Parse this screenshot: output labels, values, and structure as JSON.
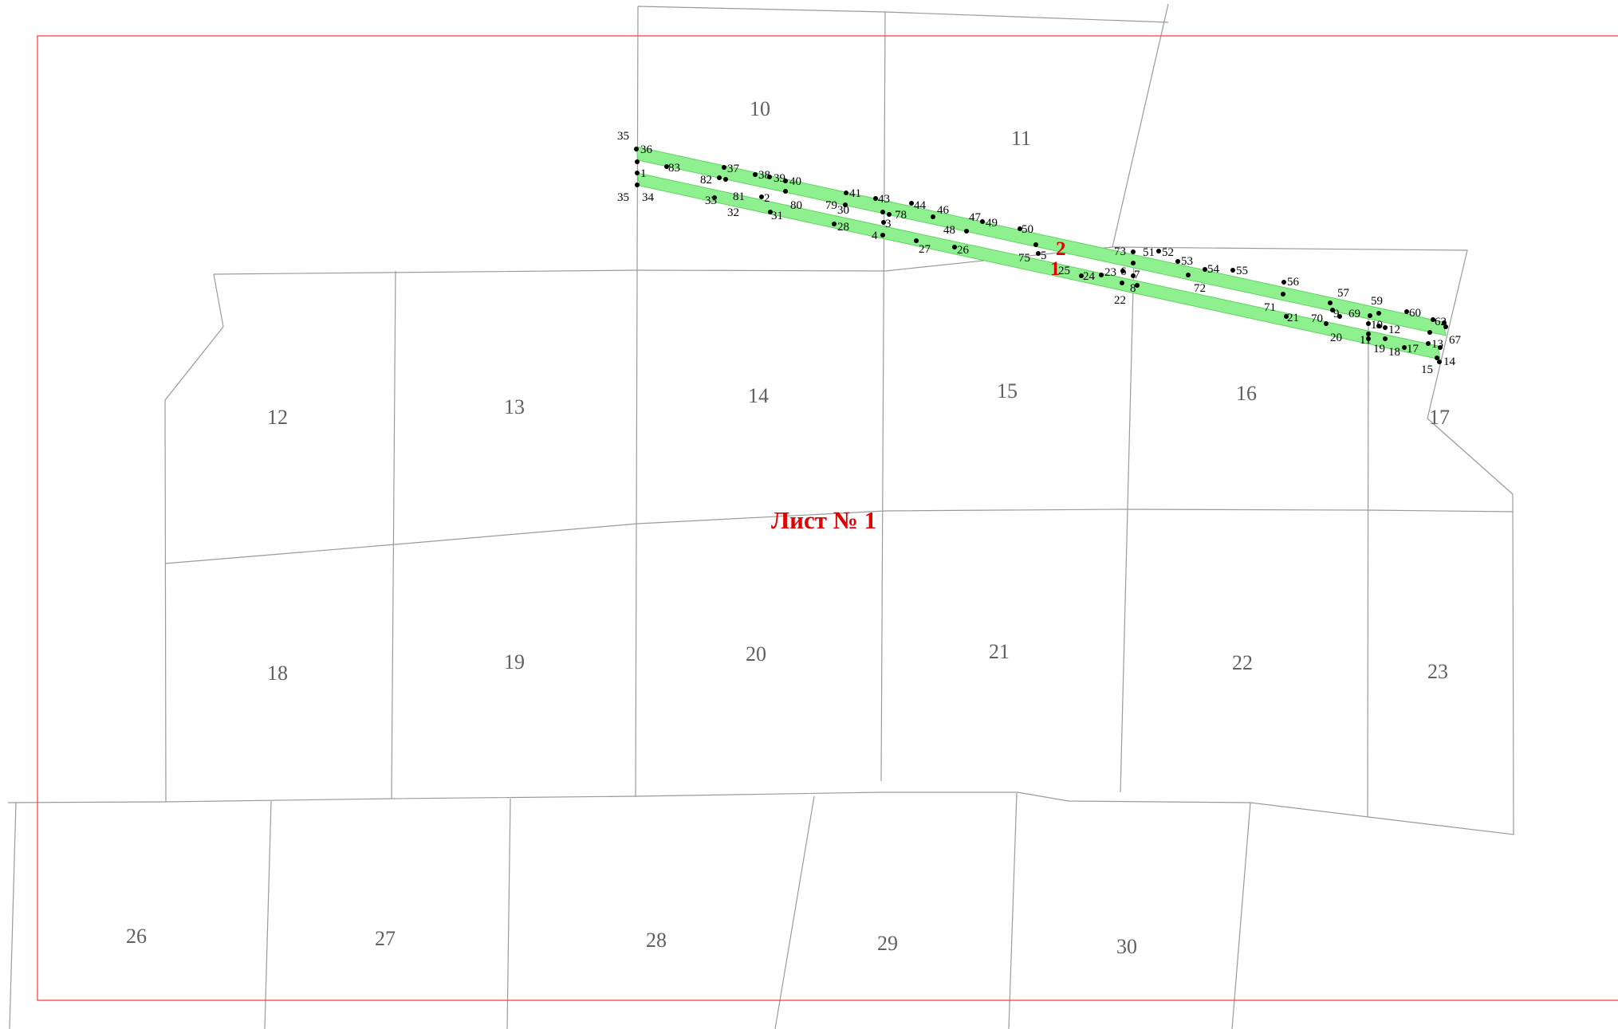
{
  "map": {
    "sheet_label": "Лист № 1",
    "colors": {
      "frame": "#ff4040",
      "strip_fill": "#8ef08e",
      "labels_red": "#e00000",
      "grid_lines": "#9a9a9a"
    },
    "parcels": [
      "10",
      "11",
      "12",
      "13",
      "14",
      "15",
      "16",
      "17",
      "18",
      "19",
      "20",
      "21",
      "22",
      "23",
      "26",
      "27",
      "28",
      "29",
      "30"
    ],
    "strips": [
      "1",
      "2"
    ],
    "points": [
      "1",
      "2",
      "3",
      "4",
      "5",
      "6",
      "7",
      "8",
      "9",
      "10",
      "11",
      "12",
      "13",
      "14",
      "15",
      "17",
      "18",
      "19",
      "20",
      "21",
      "22",
      "23",
      "24",
      "25",
      "26",
      "27",
      "28",
      "30",
      "31",
      "32",
      "33",
      "34",
      "35",
      "35",
      "36",
      "37",
      "38",
      "39",
      "40",
      "41",
      "43",
      "44",
      "46",
      "47",
      "48",
      "49",
      "50",
      "51",
      "52",
      "53",
      "54",
      "55",
      "56",
      "57",
      "59",
      "60",
      "62",
      "67",
      "69",
      "70",
      "71",
      "72",
      "73",
      "75",
      "78",
      "79",
      "80",
      "81",
      "82",
      "83"
    ]
  }
}
